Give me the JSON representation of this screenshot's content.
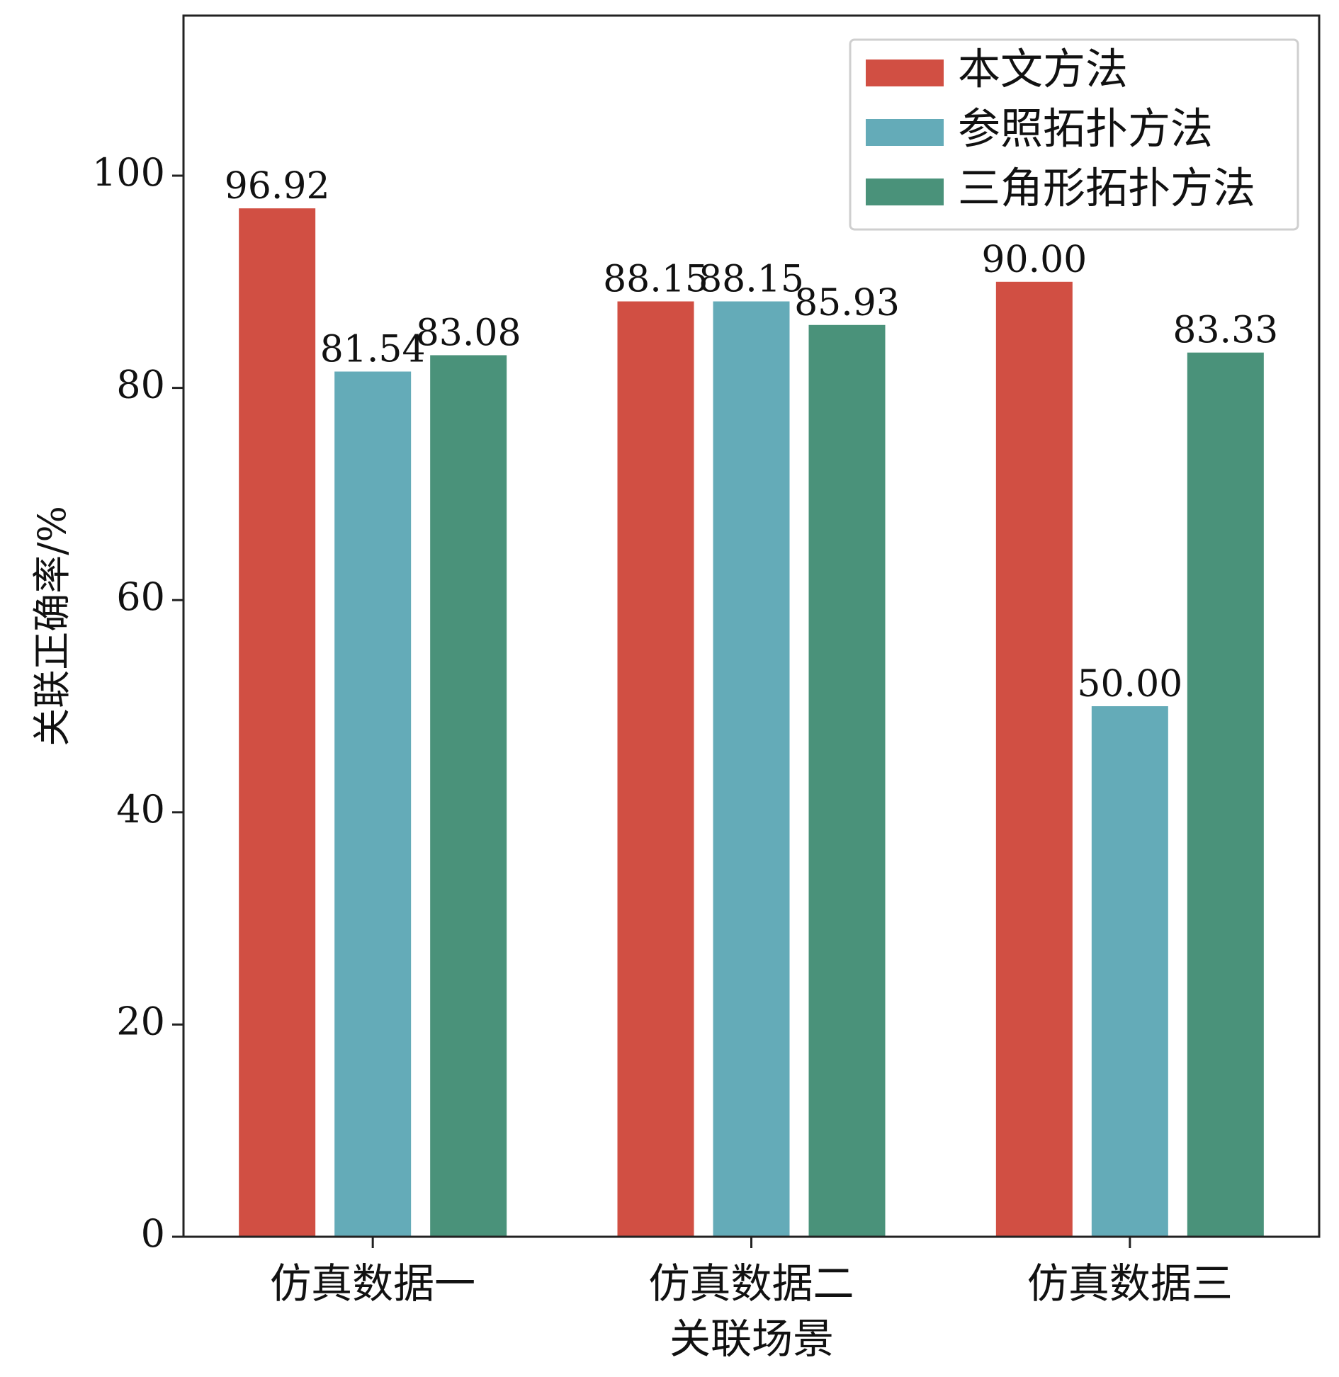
{
  "chart_data": {
    "type": "bar",
    "title": "",
    "xlabel": "关联场景",
    "ylabel": "关联正确率/%",
    "ylim": [
      0,
      115
    ],
    "yticks": [
      0,
      20,
      40,
      60,
      80,
      100
    ],
    "grid": false,
    "legend_position": "top-right",
    "categories": [
      "仿真数据一",
      "仿真数据二",
      "仿真数据三"
    ],
    "series": [
      {
        "name": "本文方法",
        "color": "#d14f43",
        "values": [
          96.92,
          88.15,
          90.0
        ],
        "labels": [
          "96.92",
          "88.15",
          "90.00"
        ]
      },
      {
        "name": "参照拓扑方法",
        "color": "#64abb8",
        "values": [
          81.54,
          88.15,
          50.0
        ],
        "labels": [
          "81.54",
          "88.15",
          "50.00"
        ]
      },
      {
        "name": "三角形拓扑方法",
        "color": "#4a927a",
        "values": [
          83.08,
          85.93,
          83.33
        ],
        "labels": [
          "83.08",
          "85.93",
          "83.33"
        ]
      }
    ]
  }
}
